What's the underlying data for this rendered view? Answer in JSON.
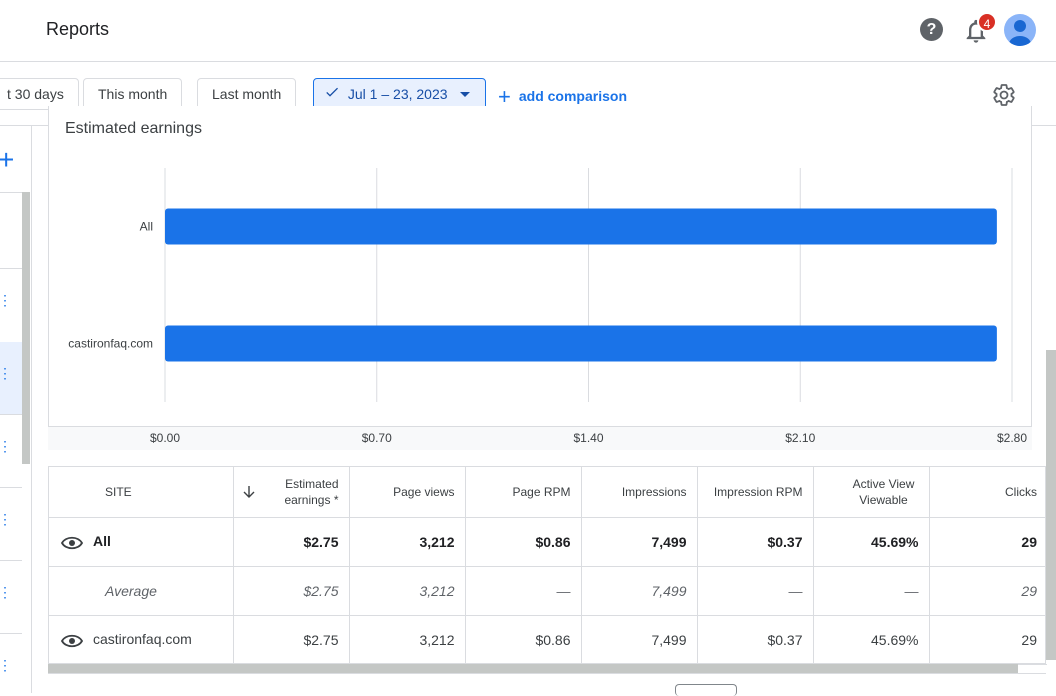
{
  "header": {
    "title": "Reports",
    "help_label": "?",
    "notification_count": "4"
  },
  "filters": {
    "chips": [
      "t 30 days",
      "This month",
      "Last month"
    ],
    "selected_range": "Jul 1 – 23, 2023",
    "add_comparison": "add comparison"
  },
  "chart": {
    "title": "Estimated earnings"
  },
  "chart_data": {
    "type": "bar",
    "orientation": "horizontal",
    "title": "Estimated earnings",
    "categories": [
      "All",
      "castironfaq.com"
    ],
    "values": [
      2.75,
      2.75
    ],
    "xlim": [
      0,
      2.8
    ],
    "xticks": [
      "$0.00",
      "$0.70",
      "$1.40",
      "$2.10",
      "$2.80"
    ],
    "tick_values": [
      0,
      0.7,
      1.4,
      2.1,
      2.8
    ],
    "bar_color": "#1a73e8",
    "grid": true
  },
  "table": {
    "headers": [
      "SITE",
      "Estimated earnings *",
      "Page views",
      "Page RPM",
      "Impressions",
      "Impression RPM",
      "Active View Viewable",
      "Clicks"
    ],
    "rows": [
      {
        "site": "All",
        "cells": [
          "$2.75",
          "3,212",
          "$0.86",
          "7,499",
          "$0.37",
          "45.69%",
          "29"
        ]
      },
      {
        "site": "Average",
        "cells": [
          "$2.75",
          "3,212",
          "—",
          "7,499",
          "—",
          "—",
          "29"
        ]
      },
      {
        "site": "castironfaq.com",
        "cells": [
          "$2.75",
          "3,212",
          "$0.86",
          "7,499",
          "$0.37",
          "45.69%",
          "29"
        ]
      }
    ]
  },
  "colors": {
    "accent": "#1a73e8",
    "selected_chip_bg": "#e8f0fe",
    "badge": "#d93025"
  }
}
